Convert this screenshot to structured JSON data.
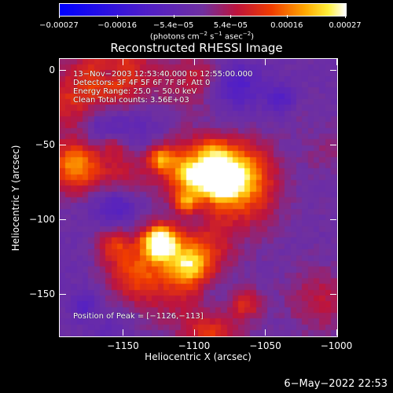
{
  "chart_data": {
    "type": "heatmap",
    "title": "Reconstructed RHESSI Image",
    "xlabel": "Heliocentric X (arcsec)",
    "ylabel": "Heliocentric Y (arcsec)",
    "xlim": [
      -1195,
      -1000
    ],
    "ylim": [
      -178,
      8
    ],
    "x_ticks": [
      "−1150",
      "−1100",
      "−1050",
      "−1000"
    ],
    "x_tick_values": [
      -1150,
      -1100,
      -1050,
      -1000
    ],
    "y_ticks": [
      "0",
      "−50",
      "−100",
      "−150"
    ],
    "y_tick_values": [
      0,
      -50,
      -100,
      -150
    ],
    "colorbar": {
      "ticks": [
        "−0.00027",
        "−0.00016",
        "−5.4e−05",
        "5.4e−05",
        "0.00016",
        "0.00027"
      ],
      "tick_values": [
        -0.00027,
        -0.00016,
        -5.4e-05,
        5.4e-05,
        0.00016,
        0.00027
      ],
      "range": [
        -0.00027,
        0.00027
      ],
      "unit_text": "(photons cm",
      "unit_exp1": "−2",
      "unit_mid": " s",
      "unit_exp2": "−1",
      "unit_mid2": " asec",
      "unit_exp3": "−2",
      "unit_end": ")"
    },
    "annotations": {
      "time_range": "13−Nov−2003 12:53:40.000 to 12:55:00.000",
      "detectors": "Detectors: 3F 4F 5F 6F 7F 8F, Att 0",
      "energy_range": "Energy Range: 25.0 − 50.0 keV",
      "clean": "Clean     Total counts: 3.56E+03",
      "peak": "Position of Peak = [−1126,−113]"
    },
    "peak_position": [
      -1126,
      -113
    ],
    "colors": {
      "colormap_low": "#0000ff",
      "colormap_mid": "#7030a0",
      "colormap_high": "#ffffff"
    }
  },
  "footer": {
    "date": "6−May−2022 22:53"
  }
}
